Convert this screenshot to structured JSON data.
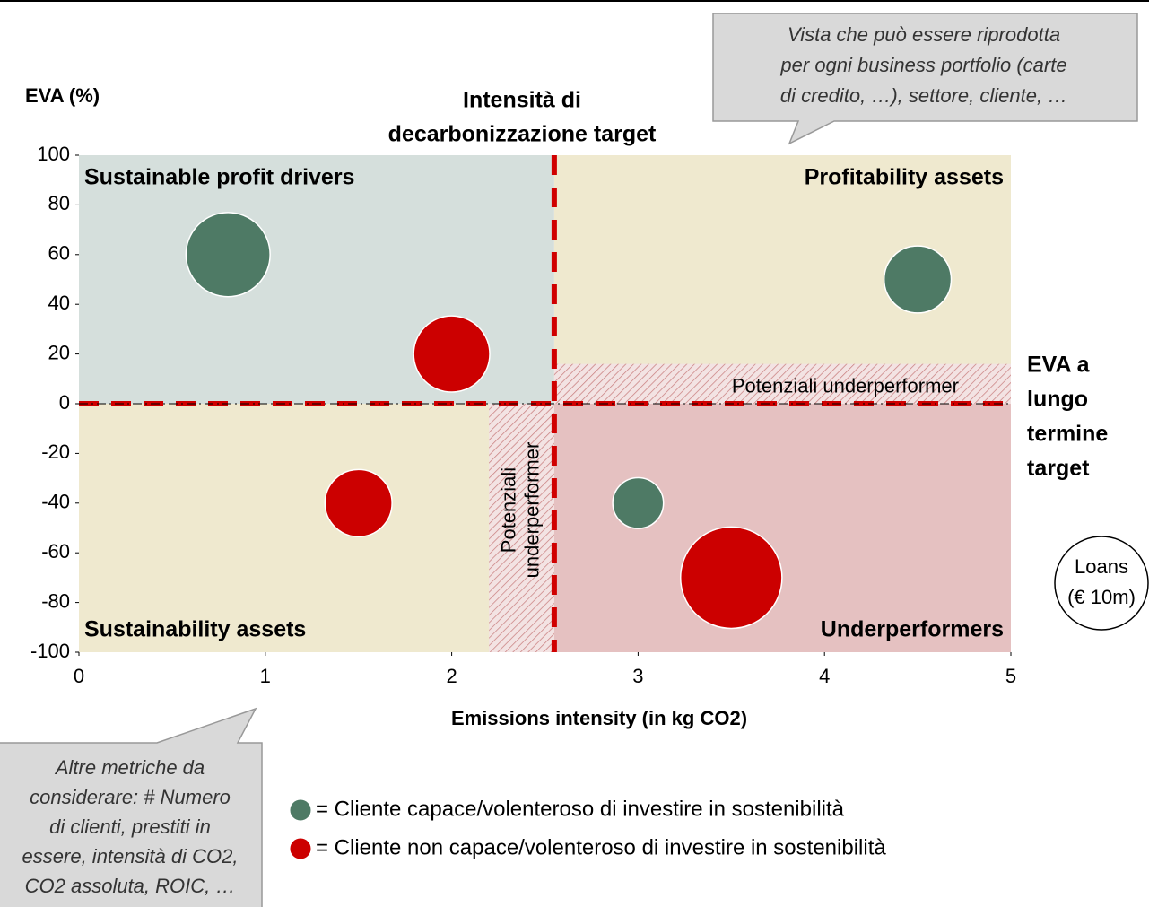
{
  "chart_data": {
    "type": "bubble",
    "y_label": "EVA (%)",
    "x_label": "Emissions intensity (in kg CO2)",
    "xlim": [
      0,
      5
    ],
    "xticks": [
      0,
      1,
      2,
      3,
      4,
      5
    ],
    "ylim": [
      -100,
      100
    ],
    "yticks": [
      -100,
      -80,
      -60,
      -40,
      -20,
      0,
      20,
      40,
      60,
      80,
      100
    ],
    "x_target": 2.55,
    "y_target": 0,
    "x_target_label": [
      "Intensità di",
      "decarbonizzazione target"
    ],
    "y_target_label": [
      "EVA a",
      "lungo",
      "termine",
      "target"
    ],
    "quadrants": [
      {
        "label": "Sustainable profit drivers",
        "color": "#d5dfdc",
        "text_color": "#3f6b57"
      },
      {
        "label": "Profitability assets",
        "color": "#efe9cf",
        "text_color": "#b8963c"
      },
      {
        "label": "Sustainability assets",
        "color": "#efe9cf",
        "text_color": "#b8963c"
      },
      {
        "label": "Underperformers",
        "color": "#e5c1c1",
        "text_color": "#b00000"
      }
    ],
    "zones": [
      {
        "label": [
          "Potenziali underperformer"
        ],
        "xlim": [
          2.55,
          5
        ],
        "ylim": [
          0,
          16
        ]
      },
      {
        "label": [
          "Potenziali",
          "underperformer"
        ],
        "xlim": [
          2.2,
          2.55
        ],
        "ylim": [
          -100,
          0
        ]
      }
    ],
    "series": [
      {
        "name": "= Cliente capace/volenteroso di investire in sostenibilità",
        "color": "#4e7a65",
        "x": [
          0.8,
          4.5,
          3
        ],
        "values": [
          60,
          50,
          -40
        ],
        "sizes": [
          22,
          14,
          8
        ]
      },
      {
        "name": "= Cliente non capace/volenteroso di investire in sostenibilità",
        "color": "#cc0000",
        "x": [
          2,
          1.5,
          3.5
        ],
        "values": [
          20,
          -40,
          -70
        ],
        "sizes": [
          18,
          14,
          32
        ]
      }
    ],
    "size_legend": [
      "Loans",
      "(€ 10m)"
    ],
    "callouts": [
      [
        "Vista che può essere riprodotta",
        "per ogni business portfolio (carte",
        "di credito, …), settore, cliente, …"
      ],
      [
        "Altre metriche da",
        "considerare: # Numero",
        "di clienti, prestiti in",
        "essere, intensità di CO2,",
        "CO2 assoluta, ROIC, …"
      ]
    ]
  }
}
